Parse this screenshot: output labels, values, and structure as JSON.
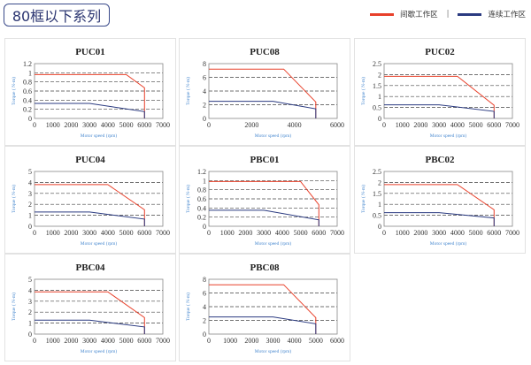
{
  "header": {
    "title": "80框以下系列"
  },
  "legend": {
    "intermittent": {
      "label": "间歇工作区",
      "color": "#e8402a"
    },
    "separator": "|",
    "continuous": {
      "label": "连续工作区",
      "color": "#2a3a80"
    }
  },
  "chart_data": [
    {
      "type": "line",
      "title": "PUC01",
      "xlabel": "Motor speed (rpm)",
      "ylabel": "Torque ( N-m)",
      "xlim": [
        0,
        7000
      ],
      "xticks": [
        0,
        1000,
        2000,
        3000,
        4000,
        5000,
        6000,
        7000
      ],
      "ylim": [
        0,
        1.2
      ],
      "yticks": [
        0,
        0.2,
        0.4,
        0.6,
        0.8,
        1,
        1.2
      ],
      "grid": "dashed-horizontal",
      "series": [
        {
          "name": "间歇工作区",
          "color": "#e8402a",
          "points": [
            [
              0,
              0.96
            ],
            [
              5000,
              0.96
            ],
            [
              6000,
              0.67
            ],
            [
              6000,
              0
            ]
          ]
        },
        {
          "name": "连续工作区",
          "color": "#2a3a80",
          "points": [
            [
              0,
              0.33
            ],
            [
              3000,
              0.33
            ],
            [
              6000,
              0.15
            ],
            [
              6000,
              0
            ]
          ]
        }
      ]
    },
    {
      "type": "line",
      "title": "PUC08",
      "xlabel": "Motor speed (rpm)",
      "ylabel": "Torque ( N-m)",
      "xlim": [
        0,
        6000
      ],
      "xticks": [
        0,
        2000,
        4000,
        6000
      ],
      "ylim": [
        0,
        8
      ],
      "yticks": [
        0,
        2,
        4,
        6,
        8
      ],
      "grid": "dashed-horizontal",
      "series": [
        {
          "name": "间歇工作区",
          "color": "#e8402a",
          "points": [
            [
              0,
              7.2
            ],
            [
              3500,
              7.2
            ],
            [
              5000,
              2.4
            ],
            [
              5000,
              0
            ]
          ]
        },
        {
          "name": "连续工作区",
          "color": "#2a3a80",
          "points": [
            [
              0,
              2.5
            ],
            [
              3000,
              2.5
            ],
            [
              5000,
              1.4
            ],
            [
              5000,
              0
            ]
          ]
        }
      ]
    },
    {
      "type": "line",
      "title": "PUC02",
      "xlabel": "Motor speed (rpm)",
      "ylabel": "Torque ( N-m)",
      "xlim": [
        0,
        7000
      ],
      "xticks": [
        0,
        1000,
        2000,
        3000,
        4000,
        5000,
        6000,
        7000
      ],
      "ylim": [
        0,
        2.5
      ],
      "yticks": [
        0,
        0.5,
        1,
        1.5,
        2,
        2.5
      ],
      "grid": "dashed-horizontal",
      "series": [
        {
          "name": "间歇工作区",
          "color": "#e8402a",
          "points": [
            [
              0,
              1.92
            ],
            [
              4000,
              1.92
            ],
            [
              6000,
              0.6
            ],
            [
              6000,
              0
            ]
          ]
        },
        {
          "name": "连续工作区",
          "color": "#2a3a80",
          "points": [
            [
              0,
              0.62
            ],
            [
              3000,
              0.62
            ],
            [
              6000,
              0.32
            ],
            [
              6000,
              0
            ]
          ]
        }
      ]
    },
    {
      "type": "line",
      "title": "PUC04",
      "xlabel": "Motor speed (rpm)",
      "ylabel": "Torque ( N-m)",
      "xlim": [
        0,
        7000
      ],
      "xticks": [
        0,
        1000,
        2000,
        3000,
        4000,
        5000,
        6000,
        7000
      ],
      "ylim": [
        0,
        5
      ],
      "yticks": [
        0,
        1,
        2,
        3,
        4,
        5
      ],
      "grid": "dashed-horizontal",
      "series": [
        {
          "name": "间歇工作区",
          "color": "#e8402a",
          "points": [
            [
              0,
              3.8
            ],
            [
              4000,
              3.8
            ],
            [
              6000,
              1.5
            ],
            [
              6000,
              0
            ]
          ]
        },
        {
          "name": "连续工作区",
          "color": "#2a3a80",
          "points": [
            [
              0,
              1.3
            ],
            [
              3000,
              1.3
            ],
            [
              6000,
              0.65
            ],
            [
              6000,
              0
            ]
          ]
        }
      ]
    },
    {
      "type": "line",
      "title": "PBC01",
      "xlabel": "Motor speed (rpm)",
      "ylabel": "Torque ( N-m)",
      "xlim": [
        0,
        7000
      ],
      "xticks": [
        0,
        1000,
        2000,
        3000,
        4000,
        5000,
        6000,
        7000
      ],
      "ylim": [
        0,
        1.2
      ],
      "yticks": [
        0,
        0.2,
        0.4,
        0.6,
        0.8,
        1,
        1.2
      ],
      "grid": "dashed-horizontal",
      "series": [
        {
          "name": "间歇工作区",
          "color": "#e8402a",
          "points": [
            [
              0,
              0.98
            ],
            [
              5000,
              0.98
            ],
            [
              6000,
              0.47
            ],
            [
              6000,
              0
            ]
          ]
        },
        {
          "name": "连续工作区",
          "color": "#2a3a80",
          "points": [
            [
              0,
              0.35
            ],
            [
              3000,
              0.35
            ],
            [
              6000,
              0.14
            ],
            [
              6000,
              0
            ]
          ]
        }
      ]
    },
    {
      "type": "line",
      "title": "PBC02",
      "xlabel": "Motor speed (rpm)",
      "ylabel": "Torque ( N-m)",
      "xlim": [
        0,
        7000
      ],
      "xticks": [
        0,
        1000,
        2000,
        3000,
        4000,
        5000,
        6000,
        7000
      ],
      "ylim": [
        0,
        2.5
      ],
      "yticks": [
        0,
        0.5,
        1,
        1.5,
        2,
        2.5
      ],
      "grid": "dashed-horizontal",
      "series": [
        {
          "name": "间歇工作区",
          "color": "#e8402a",
          "points": [
            [
              0,
              1.9
            ],
            [
              4000,
              1.9
            ],
            [
              6000,
              0.75
            ],
            [
              6000,
              0
            ]
          ]
        },
        {
          "name": "连续工作区",
          "color": "#2a3a80",
          "points": [
            [
              0,
              0.62
            ],
            [
              3000,
              0.62
            ],
            [
              6000,
              0.38
            ],
            [
              6000,
              0
            ]
          ]
        }
      ]
    },
    {
      "type": "line",
      "title": "PBC04",
      "xlabel": "Motor speed (rpm)",
      "ylabel": "Torque ( N-m)",
      "xlim": [
        0,
        7000
      ],
      "xticks": [
        0,
        1000,
        2000,
        3000,
        4000,
        5000,
        6000,
        7000
      ],
      "ylim": [
        0,
        5
      ],
      "yticks": [
        0,
        1,
        2,
        3,
        4,
        5
      ],
      "grid": "dashed-horizontal",
      "series": [
        {
          "name": "间歇工作区",
          "color": "#e8402a",
          "points": [
            [
              0,
              3.85
            ],
            [
              4000,
              3.85
            ],
            [
              6000,
              1.5
            ],
            [
              6000,
              0
            ]
          ]
        },
        {
          "name": "连续工作区",
          "color": "#2a3a80",
          "points": [
            [
              0,
              1.27
            ],
            [
              3000,
              1.27
            ],
            [
              6000,
              0.65
            ],
            [
              6000,
              0
            ]
          ]
        }
      ]
    },
    {
      "type": "line",
      "title": "PBC08",
      "xlabel": "Motor speed (rpm)",
      "ylabel": "Torque ( N-m)",
      "xlim": [
        0,
        6000
      ],
      "xticks": [
        0,
        1000,
        2000,
        3000,
        4000,
        5000,
        6000
      ],
      "ylim": [
        0,
        8
      ],
      "yticks": [
        0,
        2,
        4,
        6,
        8
      ],
      "grid": "dashed-horizontal",
      "series": [
        {
          "name": "间歇工作区",
          "color": "#e8402a",
          "points": [
            [
              0,
              7.2
            ],
            [
              3500,
              7.2
            ],
            [
              5000,
              2.4
            ],
            [
              5000,
              0
            ]
          ]
        },
        {
          "name": "连续工作区",
          "color": "#2a3a80",
          "points": [
            [
              0,
              2.5
            ],
            [
              3000,
              2.5
            ],
            [
              5000,
              1.5
            ],
            [
              5000,
              0
            ]
          ]
        }
      ]
    }
  ]
}
